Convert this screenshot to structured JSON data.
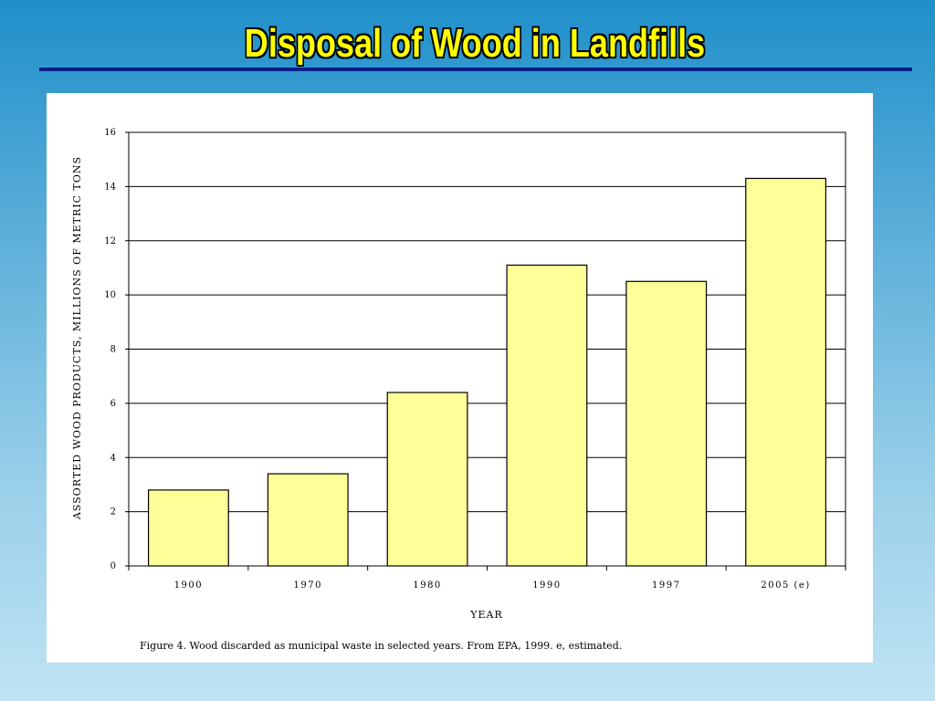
{
  "slide": {
    "title": "Disposal of Wood in Landfills",
    "caption": "Figure 4.   Wood discarded as municipal waste in selected years. From EPA, 1999.  e, estimated."
  },
  "colors": {
    "bar_fill": "#ffff99",
    "title_text": "#ffff00",
    "title_rule": "#0a1f8c"
  },
  "chart_data": {
    "type": "bar",
    "categories": [
      "1900",
      "1970",
      "1980",
      "1990",
      "1997",
      "2005 (e)"
    ],
    "values": [
      2.8,
      3.4,
      6.4,
      11.1,
      10.5,
      14.3
    ],
    "y_tick_labels": [
      "0",
      "2",
      "4",
      "6",
      "8",
      "10",
      "12",
      "14",
      "16"
    ],
    "xlabel": "YEAR",
    "ylabel": "ASSORTED WOOD PRODUCTS, MILLIONS OF METRIC TONS",
    "ylim": [
      0,
      16
    ],
    "grid": true
  }
}
